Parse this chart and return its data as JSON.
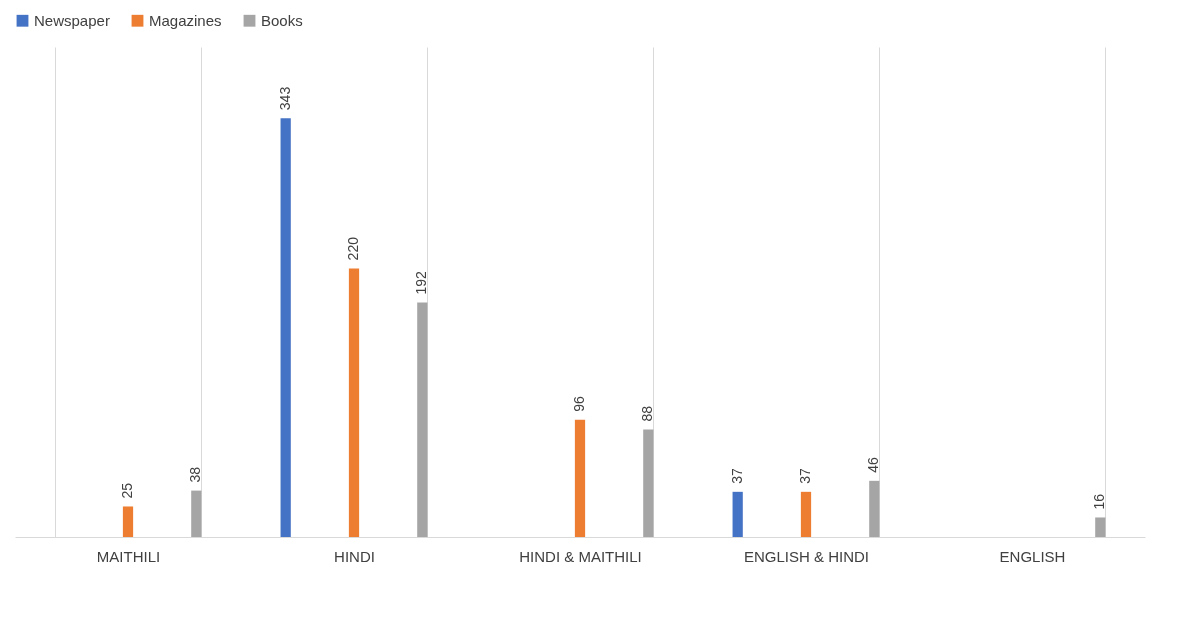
{
  "chart_data": {
    "type": "bar",
    "categories": [
      "MAITHILI",
      "HINDI",
      "HINDI & MAITHILI",
      "ENGLISH & HINDI",
      "ENGLISH"
    ],
    "series": [
      {
        "name": "Newspaper",
        "color": "#4472c4",
        "values": [
          null,
          343,
          null,
          37,
          null
        ]
      },
      {
        "name": "Magazines",
        "color": "#ed7d31",
        "values": [
          25,
          220,
          96,
          37,
          null
        ]
      },
      {
        "name": "Books",
        "color": "#a5a5a5",
        "values": [
          38,
          192,
          88,
          46,
          16
        ]
      }
    ],
    "data_labels": true,
    "grid": "x",
    "legend": "top",
    "tick_labels": "x"
  }
}
